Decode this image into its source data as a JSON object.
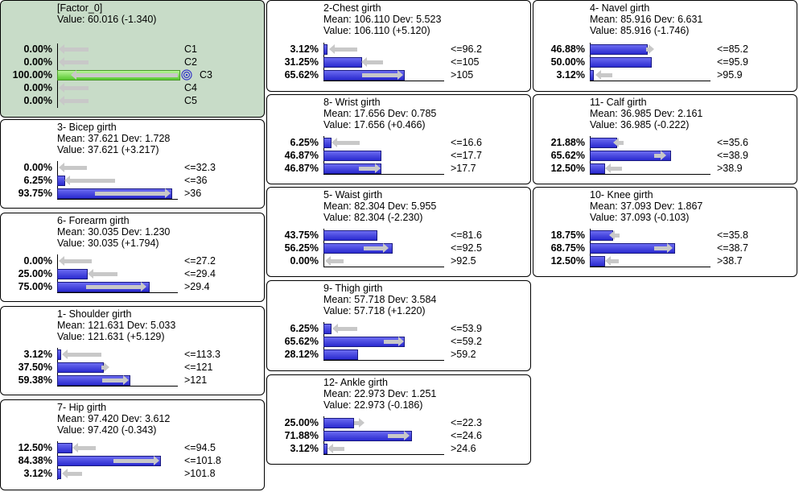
{
  "nodes": {
    "factor": {
      "title": "[Factor_0]",
      "value": "Value: 60.016 (-1.340)",
      "states": [
        {
          "pct": "0.00%",
          "label": "C1"
        },
        {
          "pct": "0.00%",
          "label": "C2"
        },
        {
          "pct": "100.00%",
          "label": "C3"
        },
        {
          "pct": "0.00%",
          "label": "C4"
        },
        {
          "pct": "0.00%",
          "label": "C5"
        }
      ]
    },
    "bicep": {
      "title": "3- Bicep girth",
      "mean": "Mean: 37.621 Dev: 1.728",
      "value": "Value: 37.621 (+3.217)",
      "states": [
        {
          "pct": "0.00%",
          "label": "<=32.3"
        },
        {
          "pct": "6.25%",
          "label": "<=36"
        },
        {
          "pct": "93.75%",
          "label": ">36"
        }
      ]
    },
    "forearm": {
      "title": "6- Forearm girth",
      "mean": "Mean: 30.035 Dev: 1.230",
      "value": "Value: 30.035 (+1.794)",
      "states": [
        {
          "pct": "0.00%",
          "label": "<=27.2"
        },
        {
          "pct": "25.00%",
          "label": "<=29.4"
        },
        {
          "pct": "75.00%",
          "label": ">29.4"
        }
      ]
    },
    "shoulder": {
      "title": "1- Shoulder girth",
      "mean": "Mean: 121.631 Dev: 5.033",
      "value": "Value: 121.631 (+5.129)",
      "states": [
        {
          "pct": "3.12%",
          "label": "<=113.3"
        },
        {
          "pct": "37.50%",
          "label": "<=121"
        },
        {
          "pct": "59.38%",
          "label": ">121"
        }
      ]
    },
    "hip": {
      "title": "7- Hip girth",
      "mean": "Mean: 97.420 Dev: 3.612",
      "value": "Value: 97.420 (-0.343)",
      "states": [
        {
          "pct": "12.50%",
          "label": "<=94.5"
        },
        {
          "pct": "84.38%",
          "label": "<=101.8"
        },
        {
          "pct": "3.12%",
          "label": ">101.8"
        }
      ]
    },
    "chest": {
      "title": "2-Chest girth",
      "mean": "Mean: 106.110 Dev: 5.523",
      "value": "Value: 106.110 (+5.120)",
      "states": [
        {
          "pct": "3.12%",
          "label": "<=96.2"
        },
        {
          "pct": "31.25%",
          "label": "<=105"
        },
        {
          "pct": "65.62%",
          "label": ">105"
        }
      ]
    },
    "wrist": {
      "title": "8- Wrist girth",
      "mean": "Mean: 17.656 Dev: 0.785",
      "value": "Value: 17.656 (+0.466)",
      "states": [
        {
          "pct": "6.25%",
          "label": "<=16.6"
        },
        {
          "pct": "46.87%",
          "label": "<=17.7"
        },
        {
          "pct": "46.87%",
          "label": ">17.7"
        }
      ]
    },
    "waist": {
      "title": "5- Waist girth",
      "mean": "Mean: 82.304 Dev: 5.955",
      "value": "Value: 82.304 (-2.230)",
      "states": [
        {
          "pct": "43.75%",
          "label": "<=81.6"
        },
        {
          "pct": "56.25%",
          "label": "<=92.5"
        },
        {
          "pct": "0.00%",
          "label": ">92.5"
        }
      ]
    },
    "thigh": {
      "title": "9- Thigh girth",
      "mean": "Mean: 57.718 Dev: 3.584",
      "value": "Value: 57.718 (+1.220)",
      "states": [
        {
          "pct": "6.25%",
          "label": "<=53.9"
        },
        {
          "pct": "65.62%",
          "label": "<=59.2"
        },
        {
          "pct": "28.12%",
          "label": ">59.2"
        }
      ]
    },
    "ankle": {
      "title": "12- Ankle girth",
      "mean": "Mean: 22.973 Dev: 1.251",
      "value": "Value: 22.973 (-0.186)",
      "states": [
        {
          "pct": "25.00%",
          "label": "<=22.3"
        },
        {
          "pct": "71.88%",
          "label": "<=24.6"
        },
        {
          "pct": "3.12%",
          "label": ">24.6"
        }
      ]
    },
    "navel": {
      "title": "4- Navel girth",
      "mean": "Mean: 85.916 Dev: 6.631",
      "value": "Value: 85.916 (-1.746)",
      "states": [
        {
          "pct": "46.88%",
          "label": "<=85.2"
        },
        {
          "pct": "50.00%",
          "label": "<=95.9"
        },
        {
          "pct": "3.12%",
          "label": ">95.9"
        }
      ]
    },
    "calf": {
      "title": "11- Calf girth",
      "mean": "Mean: 36.985 Dev: 2.161",
      "value": "Value: 36.985 (-0.222)",
      "states": [
        {
          "pct": "21.88%",
          "label": "<=35.6"
        },
        {
          "pct": "65.62%",
          "label": "<=38.9"
        },
        {
          "pct": "12.50%",
          "label": ">38.9"
        }
      ]
    },
    "knee": {
      "title": "10- Knee girth",
      "mean": "Mean: 37.093 Dev: 1.867",
      "value": "Value: 37.093 (-0.103)",
      "states": [
        {
          "pct": "18.75%",
          "label": "<=35.8"
        },
        {
          "pct": "68.75%",
          "label": "<=38.7"
        },
        {
          "pct": "12.50%",
          "label": ">38.7"
        }
      ]
    }
  },
  "colors": {
    "factor_bg": "#c8dcc8",
    "bar": "#3c3ce0",
    "bar_selected": "#58c830",
    "ghost": "#c8c8c8"
  },
  "icons": {
    "selected_state": "target-icon"
  }
}
